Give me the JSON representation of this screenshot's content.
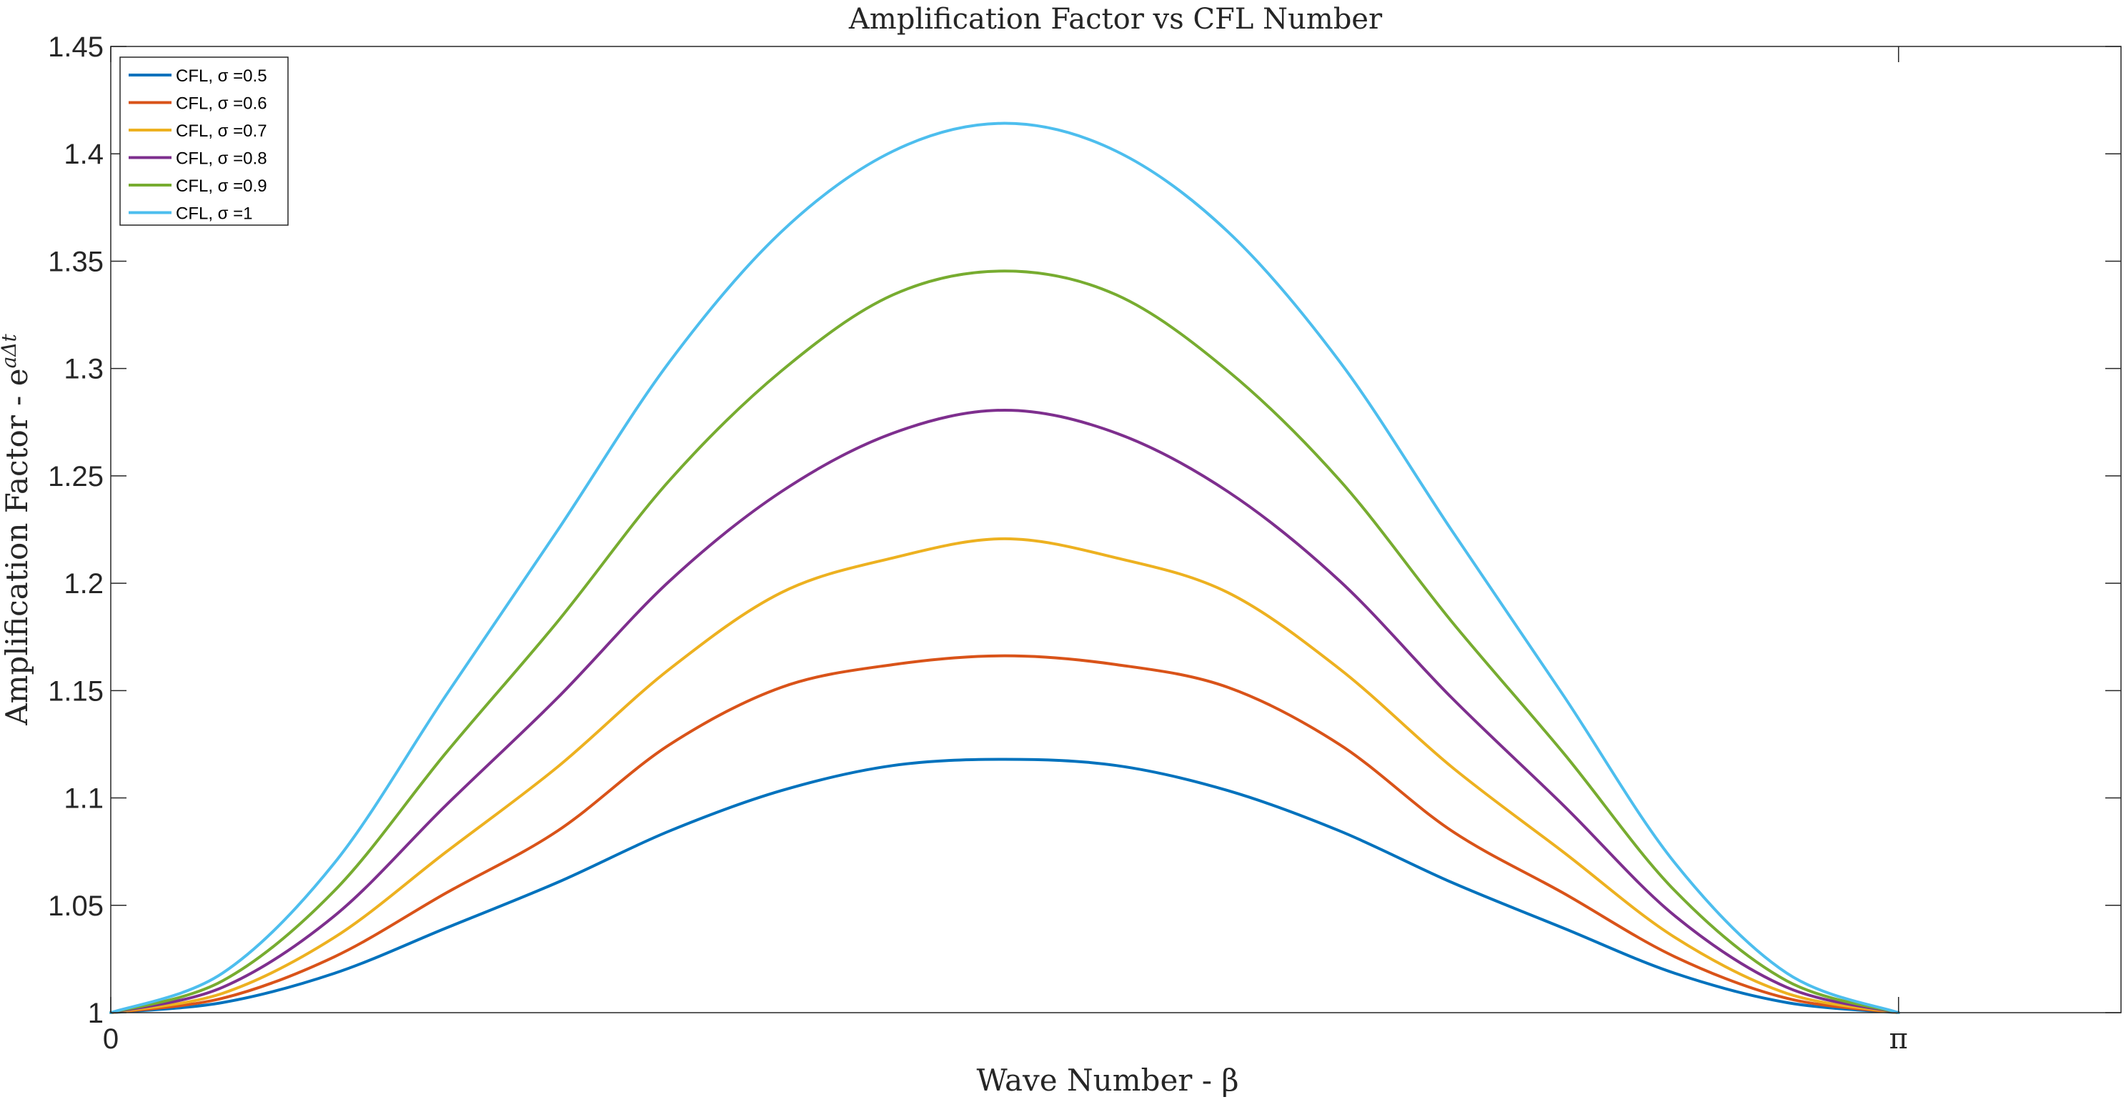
{
  "chart_data": {
    "type": "line",
    "title": "Amplification Factor vs CFL Number",
    "xlabel": "Wave Number - β",
    "ylabel_main": "Amplification Factor - e",
    "ylabel_sup": "aΔt",
    "xlim": [
      0,
      3.5325
    ],
    "ylim": [
      1,
      1.45
    ],
    "x_ticks": [
      {
        "value": 0,
        "label": "0"
      },
      {
        "value": 3.14159,
        "label": "π"
      }
    ],
    "y_ticks": [
      {
        "value": 1,
        "label": "1"
      },
      {
        "value": 1.05,
        "label": "1.05"
      },
      {
        "value": 1.1,
        "label": "1.1"
      },
      {
        "value": 1.15,
        "label": "1.15"
      },
      {
        "value": 1.2,
        "label": "1.2"
      },
      {
        "value": 1.25,
        "label": "1.25"
      },
      {
        "value": 1.3,
        "label": "1.3"
      },
      {
        "value": 1.35,
        "label": "1.35"
      },
      {
        "value": 1.4,
        "label": "1.4"
      },
      {
        "value": 1.45,
        "label": "1.45"
      }
    ],
    "x": [
      0,
      0.19635,
      0.3927,
      0.58905,
      0.7854,
      0.98175,
      1.1781,
      1.37445,
      1.5708,
      1.76715,
      1.9635,
      2.15985,
      2.3562,
      2.55255,
      2.7489,
      2.94524,
      3.14159
    ],
    "series": [
      {
        "name": "CFL, σ =0.5",
        "color": "#0072BD",
        "values": [
          1,
          1.0047,
          1.0183,
          1.0394,
          1.0607,
          1.0846,
          1.1034,
          1.1151,
          1.118,
          1.1151,
          1.1034,
          1.0846,
          1.0607,
          1.0394,
          1.0183,
          1.0047,
          1
        ]
      },
      {
        "name": "CFL, σ =0.6",
        "color": "#D95319",
        "values": [
          1,
          1.0067,
          1.026,
          1.0557,
          1.0847,
          1.1248,
          1.1515,
          1.1621,
          1.1662,
          1.1621,
          1.1515,
          1.1248,
          1.0847,
          1.0557,
          1.026,
          1.0067,
          1
        ]
      },
      {
        "name": "CFL, σ =0.7",
        "color": "#EDB120",
        "values": [
          1,
          1.009,
          1.035,
          1.0748,
          1.1145,
          1.16,
          1.1956,
          1.2118,
          1.2207,
          1.2118,
          1.1956,
          1.16,
          1.1145,
          1.0748,
          1.035,
          1.009,
          1
        ]
      },
      {
        "name": "CFL, σ =0.8",
        "color": "#7E2F8E",
        "values": [
          1,
          1.0118,
          1.045,
          1.0966,
          1.1467,
          1.201,
          1.2426,
          1.2699,
          1.2806,
          1.2699,
          1.2426,
          1.201,
          1.1467,
          1.0966,
          1.045,
          1.0118,
          1
        ]
      },
      {
        "name": "CFL, σ =0.9",
        "color": "#77AC30",
        "values": [
          1,
          1.0148,
          1.0567,
          1.121,
          1.1822,
          1.2479,
          1.2988,
          1.3343,
          1.3454,
          1.3343,
          1.2988,
          1.2479,
          1.1822,
          1.121,
          1.0567,
          1.0148,
          1
        ]
      },
      {
        "name": "CFL, σ =1",
        "color": "#4DBEEE",
        "values": [
          1,
          1.0184,
          1.0696,
          1.1478,
          1.2247,
          1.3031,
          1.3636,
          1.4012,
          1.4142,
          1.4012,
          1.3636,
          1.3031,
          1.2247,
          1.1478,
          1.0696,
          1.0184,
          1
        ]
      }
    ],
    "legend_position": "top-left",
    "grid": false
  }
}
